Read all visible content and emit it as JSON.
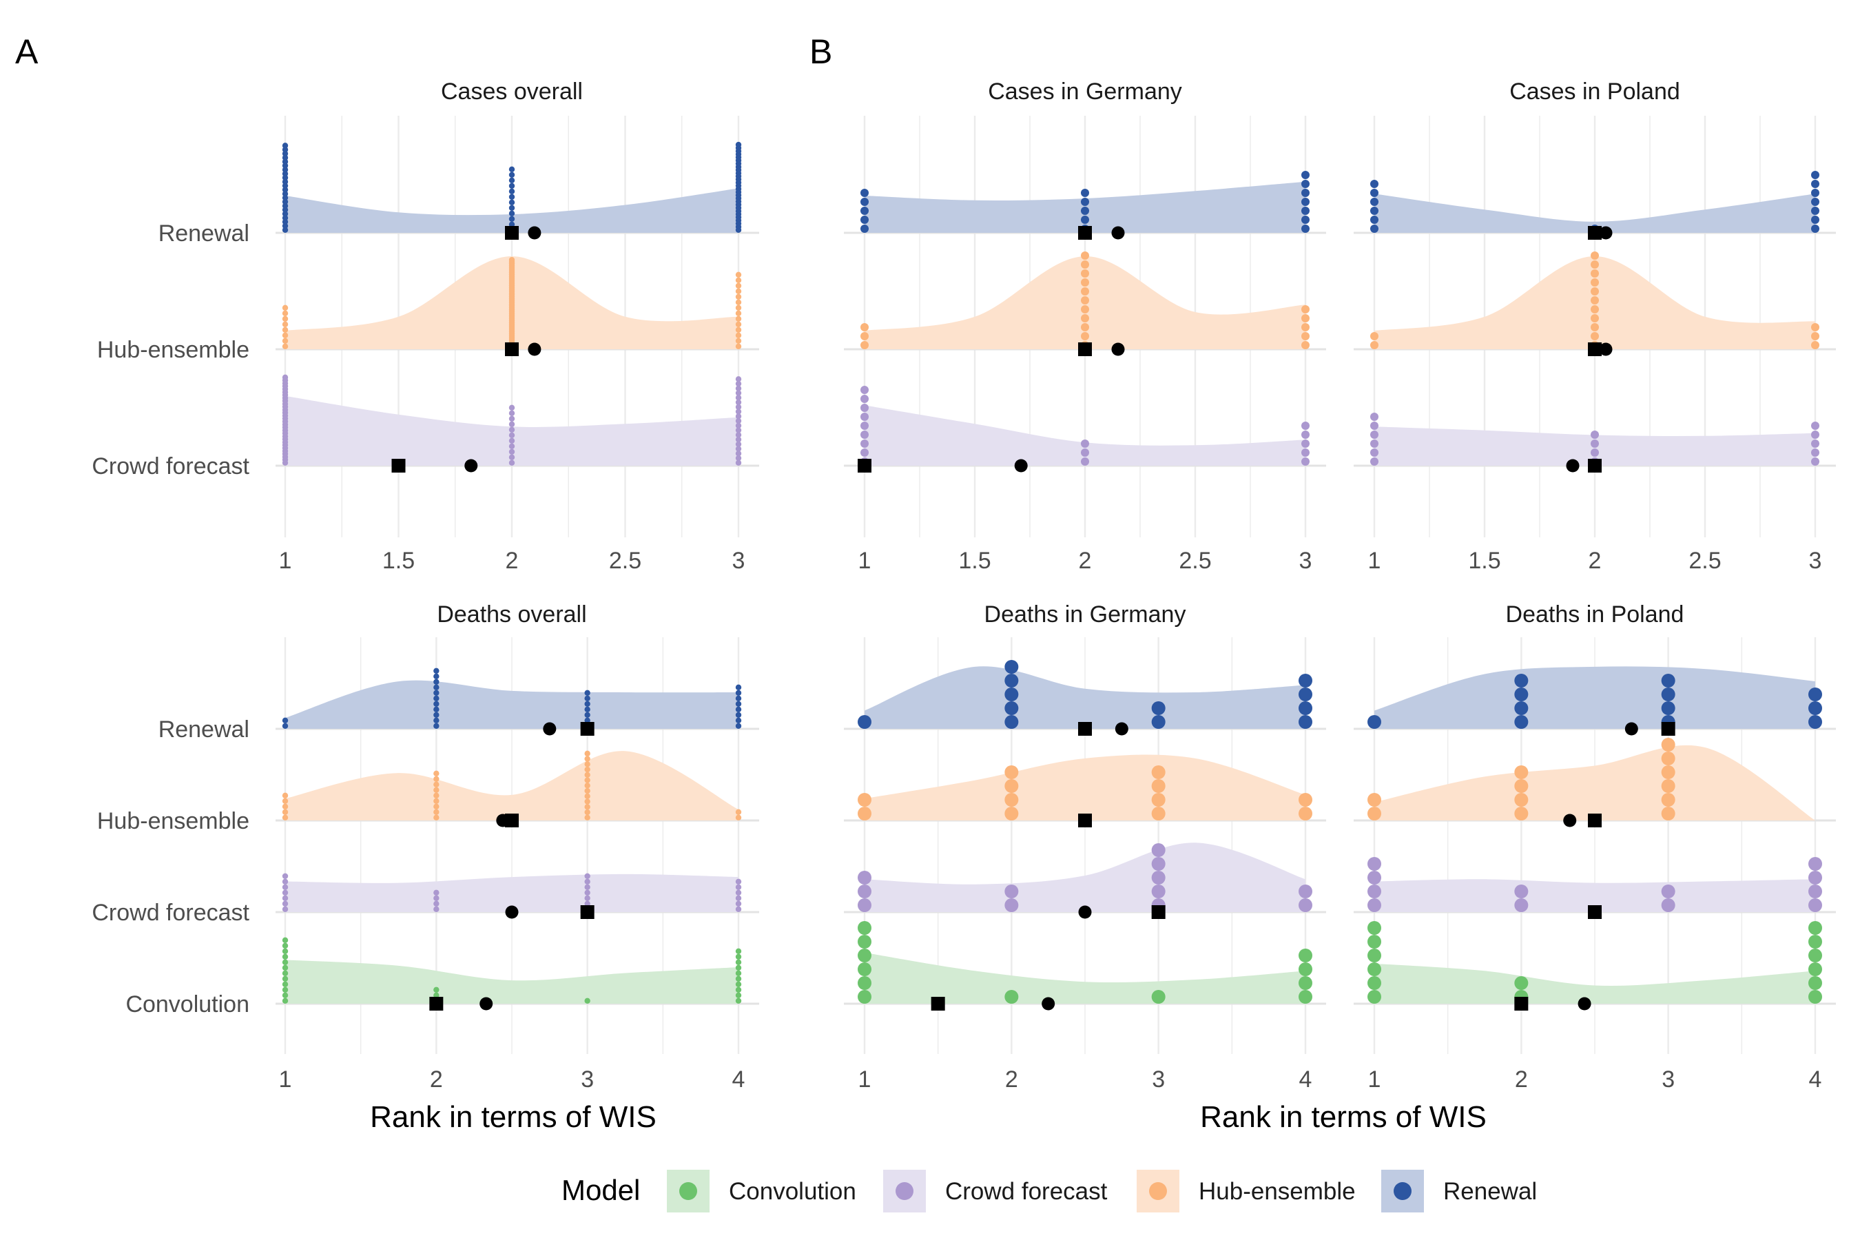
{
  "panel_tags": [
    "A",
    "B"
  ],
  "x_axis_title": "Rank in terms of WIS",
  "legend": {
    "title": "Model",
    "items": [
      {
        "label": "Convolution",
        "color": "#6cc36c",
        "fill": "#d3ebd3"
      },
      {
        "label": "Crowd forecast",
        "color": "#ab98cf",
        "fill": "#e4e0f0"
      },
      {
        "label": "Hub-ensemble",
        "color": "#fbb47a",
        "fill": "#fde2cd"
      },
      {
        "label": "Renewal",
        "color": "#2c56a1",
        "fill": "#bfcbe2"
      }
    ]
  },
  "chart_data": [
    {
      "type": "density-ridge",
      "title": "Cases overall",
      "xlim": [
        1,
        3
      ],
      "xticks": [
        "1",
        "1.5",
        "2",
        "2.5",
        "3"
      ],
      "models": [
        "Crowd forecast",
        "Hub-ensemble",
        "Renewal"
      ],
      "series": [
        {
          "name": "Crowd forecast",
          "rank_counts": {
            "1": 30,
            "2": 11,
            "3": 19
          },
          "mean_rank": 1.82,
          "median_rank": 1.5,
          "density": [
            0.75,
            0.55,
            0.42,
            0.45,
            0.52
          ]
        },
        {
          "name": "Hub-ensemble",
          "rank_counts": {
            "1": 8,
            "2": 48,
            "3": 14
          },
          "mean_rank": 2.1,
          "median_rank": 2.0,
          "density": [
            0.2,
            0.35,
            1.0,
            0.35,
            0.35
          ]
        },
        {
          "name": "Renewal",
          "rank_counts": {
            "1": 22,
            "2": 12,
            "3": 28
          },
          "mean_rank": 2.1,
          "median_rank": 2.0,
          "density": [
            0.4,
            0.22,
            0.2,
            0.3,
            0.48
          ]
        }
      ]
    },
    {
      "type": "density-ridge",
      "title": "Cases in Germany",
      "xlim": [
        1,
        3
      ],
      "xticks": [
        "1",
        "1.5",
        "2",
        "2.5",
        "3"
      ],
      "models": [
        "Crowd forecast",
        "Hub-ensemble",
        "Renewal"
      ],
      "series": [
        {
          "name": "Crowd forecast",
          "rank_counts": {
            "1": 9,
            "2": 3,
            "3": 5
          },
          "mean_rank": 1.71,
          "median_rank": 1.0,
          "density": [
            0.65,
            0.45,
            0.25,
            0.22,
            0.28
          ]
        },
        {
          "name": "Hub-ensemble",
          "rank_counts": {
            "1": 3,
            "2": 11,
            "3": 5
          },
          "mean_rank": 2.15,
          "median_rank": 2.0,
          "density": [
            0.2,
            0.35,
            1.0,
            0.4,
            0.48
          ]
        },
        {
          "name": "Renewal",
          "rank_counts": {
            "1": 5,
            "2": 5,
            "3": 7
          },
          "mean_rank": 2.15,
          "median_rank": 2.0,
          "density": [
            0.4,
            0.35,
            0.37,
            0.45,
            0.55
          ]
        }
      ]
    },
    {
      "type": "density-ridge",
      "title": "Cases in Poland",
      "xlim": [
        1,
        3
      ],
      "xticks": [
        "1",
        "1.5",
        "2",
        "2.5",
        "3"
      ],
      "models": [
        "Crowd forecast",
        "Hub-ensemble",
        "Renewal"
      ],
      "series": [
        {
          "name": "Crowd forecast",
          "rank_counts": {
            "1": 6,
            "2": 4,
            "3": 5
          },
          "mean_rank": 1.9,
          "median_rank": 2.0,
          "density": [
            0.42,
            0.38,
            0.33,
            0.32,
            0.35
          ]
        },
        {
          "name": "Hub-ensemble",
          "rank_counts": {
            "1": 2,
            "2": 11,
            "3": 3
          },
          "mean_rank": 2.05,
          "median_rank": 2.0,
          "density": [
            0.2,
            0.35,
            1.0,
            0.35,
            0.3
          ]
        },
        {
          "name": "Renewal",
          "rank_counts": {
            "1": 6,
            "2": 1,
            "3": 7
          },
          "mean_rank": 2.05,
          "median_rank": 2.0,
          "density": [
            0.42,
            0.25,
            0.12,
            0.25,
            0.42
          ]
        }
      ]
    },
    {
      "type": "density-ridge",
      "title": "Deaths overall",
      "xlim": [
        1,
        4
      ],
      "xticks": [
        "1",
        "2",
        "3",
        "4"
      ],
      "models": [
        "Convolution",
        "Crowd forecast",
        "Hub-ensemble",
        "Renewal"
      ],
      "series": [
        {
          "name": "Convolution",
          "rank_counts": {
            "1": 12,
            "2": 3,
            "3": 1,
            "4": 10
          },
          "mean_rank": 2.33,
          "median_rank": 2.0,
          "density": [
            0.6,
            0.52,
            0.32,
            0.42,
            0.5
          ]
        },
        {
          "name": "Crowd forecast",
          "rank_counts": {
            "1": 7,
            "2": 4,
            "3": 7,
            "4": 6
          },
          "mean_rank": 2.5,
          "median_rank": 3.0,
          "density": [
            0.42,
            0.4,
            0.48,
            0.52,
            0.48
          ]
        },
        {
          "name": "Hub-ensemble",
          "rank_counts": {
            "1": 5,
            "2": 9,
            "3": 13,
            "4": 2
          },
          "mean_rank": 2.44,
          "median_rank": 2.5,
          "density": [
            0.3,
            0.65,
            0.35,
            0.95,
            0.15
          ]
        },
        {
          "name": "Renewal",
          "rank_counts": {
            "1": 2,
            "2": 11,
            "3": 7,
            "4": 8
          },
          "mean_rank": 2.75,
          "median_rank": 3.0,
          "density": [
            0.15,
            0.65,
            0.52,
            0.5,
            0.5
          ]
        }
      ]
    },
    {
      "type": "density-ridge",
      "title": "Deaths in Germany",
      "xlim": [
        1,
        4
      ],
      "xticks": [
        "1",
        "2",
        "3",
        "4"
      ],
      "models": [
        "Convolution",
        "Crowd forecast",
        "Hub-ensemble",
        "Renewal"
      ],
      "series": [
        {
          "name": "Convolution",
          "rank_counts": {
            "1": 6,
            "2": 1,
            "3": 1,
            "4": 4
          },
          "mean_rank": 2.25,
          "median_rank": 1.5,
          "density": [
            0.7,
            0.45,
            0.3,
            0.33,
            0.45
          ]
        },
        {
          "name": "Crowd forecast",
          "rank_counts": {
            "1": 3,
            "2": 2,
            "3": 5,
            "4": 2
          },
          "mean_rank": 2.5,
          "median_rank": 3.0,
          "density": [
            0.45,
            0.38,
            0.5,
            0.95,
            0.45
          ]
        },
        {
          "name": "Hub-ensemble",
          "rank_counts": {
            "1": 2,
            "2": 4,
            "3": 4,
            "4": 2
          },
          "mean_rank": 2.5,
          "median_rank": 2.5,
          "density": [
            0.3,
            0.55,
            0.85,
            0.85,
            0.35
          ]
        },
        {
          "name": "Renewal",
          "rank_counts": {
            "1": 1,
            "2": 5,
            "3": 2,
            "4": 4
          },
          "mean_rank": 2.75,
          "median_rank": 2.5,
          "density": [
            0.25,
            0.85,
            0.55,
            0.5,
            0.6
          ]
        }
      ]
    },
    {
      "type": "density-ridge",
      "title": "Deaths in Poland",
      "xlim": [
        1,
        4
      ],
      "xticks": [
        "1",
        "2",
        "3",
        "4"
      ],
      "models": [
        "Convolution",
        "Crowd forecast",
        "Hub-ensemble",
        "Renewal"
      ],
      "series": [
        {
          "name": "Convolution",
          "rank_counts": {
            "1": 6,
            "2": 2,
            "3": 0,
            "4": 6
          },
          "mean_rank": 2.43,
          "median_rank": 2.0,
          "density": [
            0.55,
            0.45,
            0.25,
            0.32,
            0.45
          ]
        },
        {
          "name": "Crowd forecast",
          "rank_counts": {
            "1": 4,
            "2": 2,
            "3": 2,
            "4": 4
          },
          "mean_rank": 2.5,
          "median_rank": 2.5,
          "density": [
            0.42,
            0.45,
            0.4,
            0.42,
            0.45
          ]
        },
        {
          "name": "Hub-ensemble",
          "rank_counts": {
            "1": 2,
            "2": 4,
            "3": 6,
            "4": 0
          },
          "mean_rank": 2.33,
          "median_rank": 2.5,
          "density": [
            0.25,
            0.6,
            0.75,
            1.0,
            0.0
          ]
        },
        {
          "name": "Renewal",
          "rank_counts": {
            "1": 1,
            "2": 4,
            "3": 4,
            "4": 3
          },
          "mean_rank": 2.75,
          "median_rank": 3.0,
          "density": [
            0.25,
            0.75,
            0.85,
            0.82,
            0.65
          ]
        }
      ]
    }
  ]
}
